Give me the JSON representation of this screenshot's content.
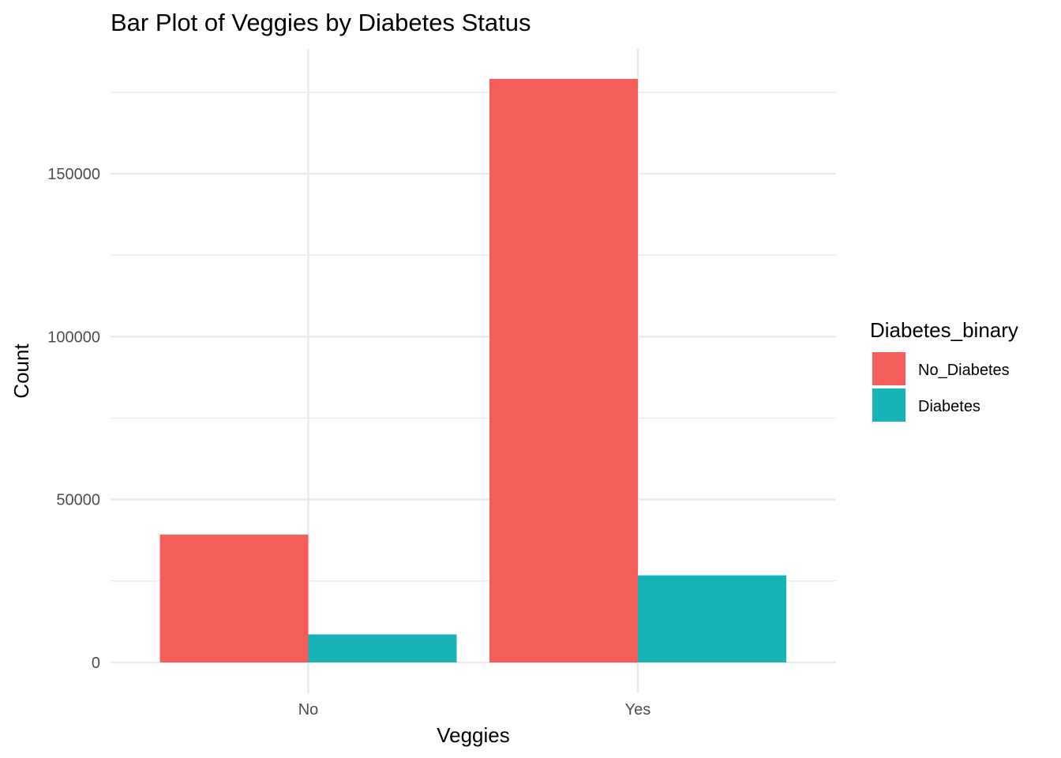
{
  "chart_data": {
    "type": "bar",
    "title": "Bar Plot of Veggies by Diabetes Status",
    "xlabel": "Veggies",
    "ylabel": "Count",
    "categories": [
      "No",
      "Yes"
    ],
    "series": [
      {
        "name": "No_Diabetes",
        "color": "#F35E5A",
        "values": [
          39229,
          179105
        ]
      },
      {
        "name": "Diabetes",
        "color": "#17B3B7",
        "values": [
          8610,
          26736
        ]
      }
    ],
    "y_ticks": [
      0,
      50000,
      100000,
      150000
    ],
    "y_tick_labels": [
      "0",
      "50000",
      "100000",
      "150000"
    ],
    "ylim": [
      0,
      188000
    ],
    "grid": true,
    "legend": {
      "title": "Diabetes_binary",
      "placement": "right"
    }
  }
}
